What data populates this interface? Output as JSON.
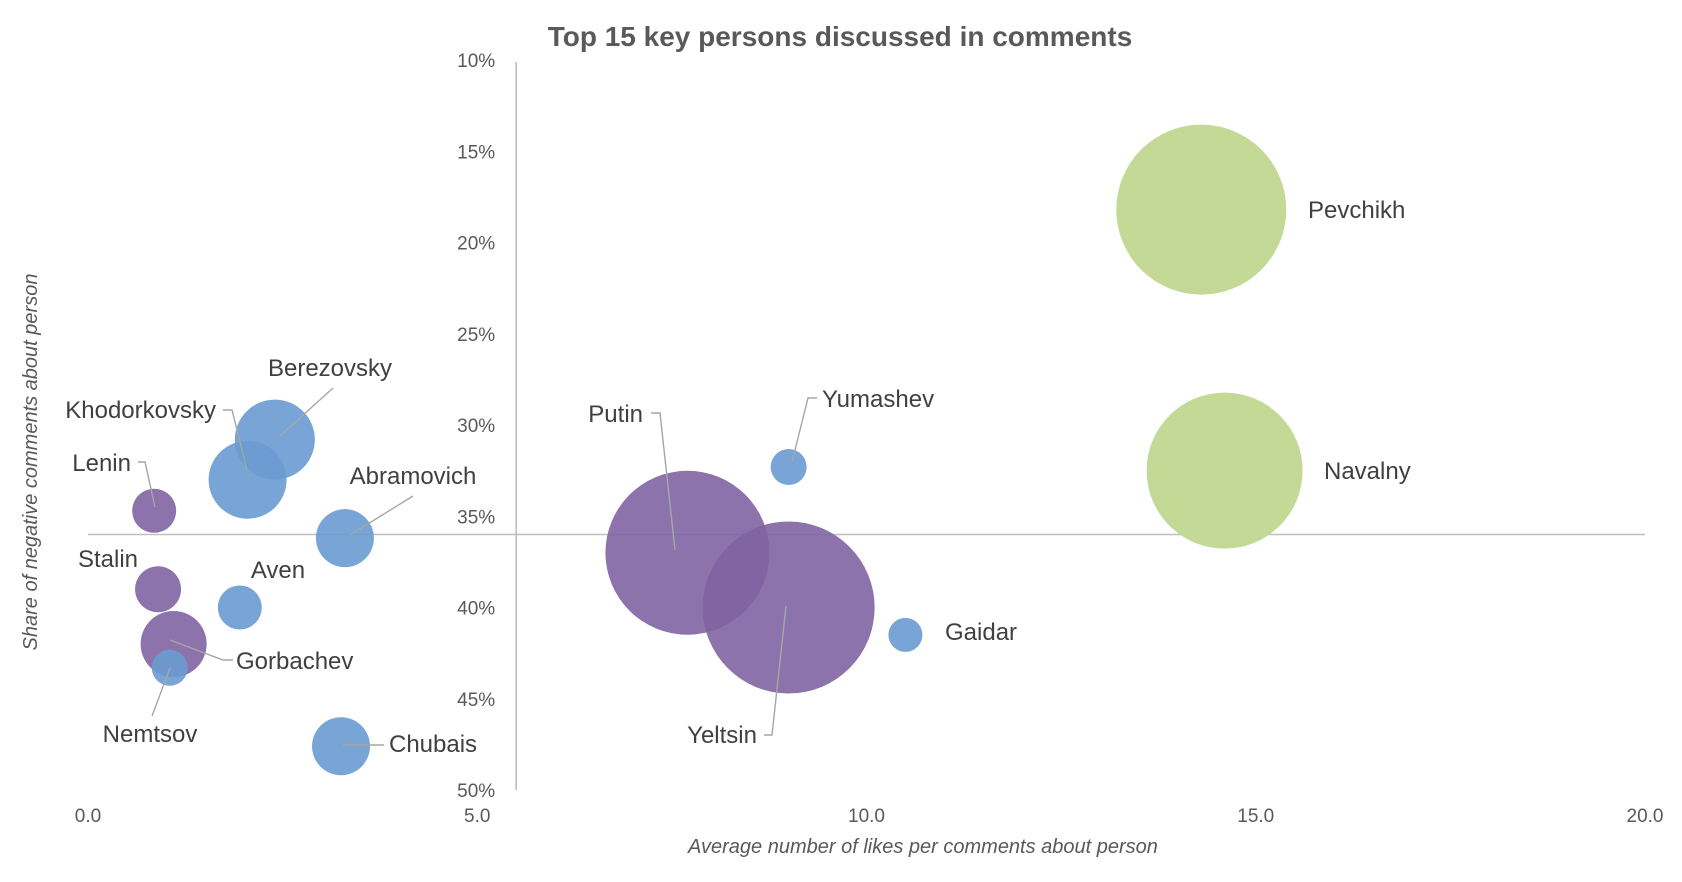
{
  "chart_data": {
    "type": "bubble",
    "title": "Top 15 key persons discussed in comments",
    "xlabel": "Average number of likes per comments about person",
    "ylabel": "Share of negative comments about person",
    "xlim": [
      0,
      20
    ],
    "ylim": [
      10,
      50
    ],
    "y_reversed": true,
    "y_unit": "%",
    "x_ticks": [
      "0.0",
      "5.0",
      "10.0",
      "15.0",
      "20.0"
    ],
    "y_ticks": [
      "10%",
      "15%",
      "20%",
      "25%",
      "30%",
      "35%",
      "40%",
      "45%",
      "50%"
    ],
    "x_axis_crosses_at_y": 36,
    "y_axis_crosses_at_x": 5.5,
    "grid": false,
    "legend": "none",
    "colors": {
      "purple": "#8064a2",
      "blue": "#6a9bd2",
      "green": "#c3d995"
    },
    "points": [
      {
        "name": "Pevchikh",
        "x": 14.3,
        "y": 18.2,
        "size": 85,
        "color": "green"
      },
      {
        "name": "Navalny",
        "x": 14.6,
        "y": 32.5,
        "size": 78,
        "color": "green"
      },
      {
        "name": "Putin",
        "x": 7.7,
        "y": 37.0,
        "size": 82,
        "color": "purple"
      },
      {
        "name": "Yeltsin",
        "x": 9.0,
        "y": 40.0,
        "size": 86,
        "color": "purple"
      },
      {
        "name": "Yumashev",
        "x": 9.0,
        "y": 32.3,
        "size": 18,
        "color": "blue"
      },
      {
        "name": "Gaidar",
        "x": 10.5,
        "y": 41.5,
        "size": 17,
        "color": "blue"
      },
      {
        "name": "Berezovsky",
        "x": 2.4,
        "y": 30.8,
        "size": 40,
        "color": "blue"
      },
      {
        "name": "Khodorkovsky",
        "x": 2.05,
        "y": 33.0,
        "size": 39,
        "color": "blue"
      },
      {
        "name": "Lenin",
        "x": 0.85,
        "y": 34.7,
        "size": 22,
        "color": "purple"
      },
      {
        "name": "Abramovich",
        "x": 3.3,
        "y": 36.2,
        "size": 29,
        "color": "blue"
      },
      {
        "name": "Stalin",
        "x": 0.9,
        "y": 39.0,
        "size": 23,
        "color": "purple"
      },
      {
        "name": "Aven",
        "x": 1.95,
        "y": 40.0,
        "size": 22,
        "color": "blue"
      },
      {
        "name": "Gorbachev",
        "x": 1.1,
        "y": 42.0,
        "size": 33,
        "color": "purple"
      },
      {
        "name": "Nemtsov",
        "x": 1.05,
        "y": 43.3,
        "size": 18,
        "color": "blue"
      },
      {
        "name": "Chubais",
        "x": 3.25,
        "y": 47.6,
        "size": 29,
        "color": "blue"
      }
    ]
  }
}
